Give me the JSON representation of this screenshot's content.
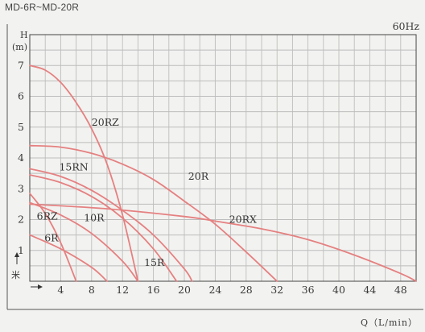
{
  "header": {
    "model_range": "MD-6R~MD-20R"
  },
  "chart_data": {
    "type": "line",
    "frequency_label": "60Hz",
    "ylabel": "H",
    "yunit": "(m)",
    "ylabel_cjk": "米",
    "xlabel": "Q（L/min）",
    "xlim": [
      0,
      50
    ],
    "ylim": [
      0,
      8
    ],
    "x_ticks": [
      4,
      8,
      12,
      16,
      20,
      24,
      28,
      32,
      36,
      40,
      44,
      48
    ],
    "y_ticks": [
      1,
      2,
      3,
      4,
      5,
      6,
      7
    ],
    "grid": true,
    "series": [
      {
        "name": "20RZ",
        "x": [
          0,
          2,
          4,
          6,
          8,
          10,
          12,
          14
        ],
        "y": [
          7.0,
          6.85,
          6.45,
          5.8,
          4.95,
          3.8,
          2.15,
          0.0
        ]
      },
      {
        "name": "20R",
        "x": [
          0,
          4,
          8,
          12,
          16,
          20,
          24,
          28,
          32
        ],
        "y": [
          4.4,
          4.35,
          4.15,
          3.8,
          3.3,
          2.6,
          1.85,
          0.95,
          0.0
        ]
      },
      {
        "name": "20RX",
        "x": [
          0,
          10,
          20,
          24,
          30,
          36,
          42,
          48,
          50
        ],
        "y": [
          2.5,
          2.35,
          2.1,
          1.95,
          1.7,
          1.35,
          0.85,
          0.25,
          0.0
        ]
      },
      {
        "name": "15RN",
        "x": [
          0,
          4,
          8,
          12,
          16,
          20,
          21
        ],
        "y": [
          3.65,
          3.4,
          2.95,
          2.3,
          1.5,
          0.4,
          0.0
        ]
      },
      {
        "name": "15R",
        "x": [
          0,
          4,
          8,
          12,
          16,
          19
        ],
        "y": [
          3.45,
          3.2,
          2.75,
          2.05,
          1.05,
          0.0
        ]
      },
      {
        "name": "10R",
        "x": [
          0,
          4,
          8,
          12,
          14
        ],
        "y": [
          2.55,
          2.15,
          1.55,
          0.65,
          0.0
        ]
      },
      {
        "name": "6RZ",
        "x": [
          0,
          2,
          4,
          6
        ],
        "y": [
          2.85,
          2.2,
          1.25,
          0.0
        ]
      },
      {
        "name": "6R",
        "x": [
          0,
          4,
          8,
          10
        ],
        "y": [
          1.5,
          1.05,
          0.45,
          0.0
        ]
      }
    ]
  }
}
